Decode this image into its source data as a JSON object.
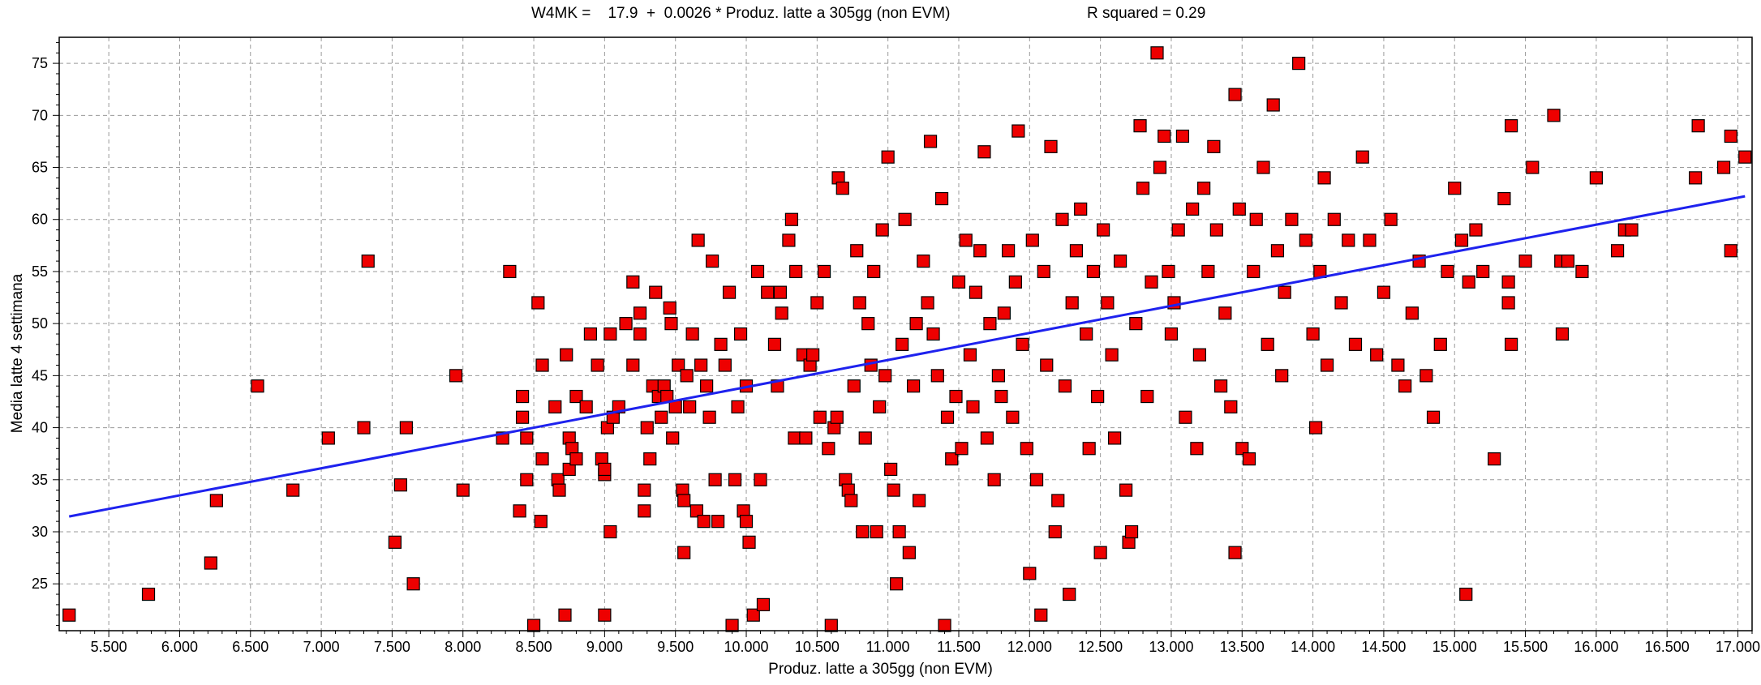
{
  "header": {
    "equation": "W4MK =    17.9  +  0.0026 * Produz. latte a 305gg (non EVM)",
    "r_squared": "R squared = 0.29"
  },
  "colors": {
    "points": "#ee0000",
    "point_border": "#000000",
    "line": "#1e22ee",
    "grid": "#9a9a9a"
  },
  "chart_data": {
    "type": "scatter",
    "title": "W4MK =    17.9  +  0.0026 * Produz. latte a 305gg (non EVM)",
    "subtitle": "R squared = 0.29",
    "xlabel": "Produz. latte a 305gg (non EVM)",
    "ylabel": "Media latte 4 settimana",
    "xlim": [
      5150,
      17100
    ],
    "ylim": [
      20.5,
      77.5
    ],
    "grid": true,
    "x_ticks": [
      5500,
      6000,
      6500,
      7000,
      7500,
      8000,
      8500,
      9000,
      9500,
      10000,
      10500,
      11000,
      11500,
      12000,
      12500,
      13000,
      13500,
      14000,
      14500,
      15000,
      15500,
      16000,
      16500,
      17000
    ],
    "x_tick_labels": [
      "5.500",
      "6.000",
      "6.500",
      "7.000",
      "7.500",
      "8.000",
      "8.500",
      "9.000",
      "9.500",
      "10.000",
      "10.500",
      "11.000",
      "11.500",
      "12.000",
      "12.500",
      "13.000",
      "13.500",
      "14.000",
      "14.500",
      "15.000",
      "15.500",
      "16.000",
      "16.500",
      "17.000"
    ],
    "y_ticks": [
      25,
      30,
      35,
      40,
      45,
      50,
      55,
      60,
      65,
      70,
      75
    ],
    "y_tick_labels": [
      "25",
      "30",
      "35",
      "40",
      "45",
      "50",
      "55",
      "60",
      "65",
      "70",
      "75"
    ],
    "regression": {
      "intercept": 17.9,
      "slope": 0.0026,
      "x_range": [
        5220,
        17050
      ]
    },
    "points": [
      [
        5220,
        22
      ],
      [
        5780,
        24
      ],
      [
        6220,
        27
      ],
      [
        6260,
        33
      ],
      [
        6550,
        44
      ],
      [
        6800,
        34
      ],
      [
        7050,
        39
      ],
      [
        7300,
        40
      ],
      [
        7330,
        56
      ],
      [
        7520,
        29
      ],
      [
        7560,
        34.5
      ],
      [
        7600,
        40
      ],
      [
        7650,
        25
      ],
      [
        7950,
        45
      ],
      [
        8000,
        34
      ],
      [
        8280,
        39
      ],
      [
        8330,
        55
      ],
      [
        8400,
        32
      ],
      [
        8420,
        43
      ],
      [
        8420,
        41
      ],
      [
        8450,
        35
      ],
      [
        8450,
        39
      ],
      [
        8500,
        21
      ],
      [
        8530,
        52
      ],
      [
        8560,
        46
      ],
      [
        8560,
        37
      ],
      [
        8550,
        31
      ],
      [
        8650,
        42
      ],
      [
        8670,
        35
      ],
      [
        8680,
        34
      ],
      [
        8720,
        22
      ],
      [
        8730,
        47
      ],
      [
        8750,
        39
      ],
      [
        8750,
        36
      ],
      [
        8770,
        38
      ],
      [
        8800,
        43
      ],
      [
        8800,
        37
      ],
      [
        8870,
        42
      ],
      [
        8900,
        49
      ],
      [
        8950,
        46
      ],
      [
        8980,
        37
      ],
      [
        9000,
        35.5
      ],
      [
        9000,
        36
      ],
      [
        9000,
        22
      ],
      [
        9020,
        40
      ],
      [
        9040,
        30
      ],
      [
        9040,
        49
      ],
      [
        9060,
        41
      ],
      [
        9100,
        42
      ],
      [
        9150,
        50
      ],
      [
        9200,
        54
      ],
      [
        9200,
        46
      ],
      [
        9250,
        51
      ],
      [
        9250,
        49
      ],
      [
        9280,
        34
      ],
      [
        9280,
        32
      ],
      [
        9300,
        40
      ],
      [
        9320,
        37
      ],
      [
        9340,
        44
      ],
      [
        9360,
        53
      ],
      [
        9380,
        43
      ],
      [
        9400,
        41
      ],
      [
        9420,
        44
      ],
      [
        9440,
        43
      ],
      [
        9460,
        51.5
      ],
      [
        9470,
        50
      ],
      [
        9480,
        39
      ],
      [
        9500,
        42
      ],
      [
        9520,
        46
      ],
      [
        9550,
        34
      ],
      [
        9560,
        33
      ],
      [
        9560,
        28
      ],
      [
        9580,
        45
      ],
      [
        9600,
        42
      ],
      [
        9620,
        49
      ],
      [
        9650,
        32
      ],
      [
        9660,
        58
      ],
      [
        9680,
        46
      ],
      [
        9700,
        31
      ],
      [
        9720,
        44
      ],
      [
        9740,
        41
      ],
      [
        9760,
        56
      ],
      [
        9780,
        35
      ],
      [
        9800,
        31
      ],
      [
        9820,
        48
      ],
      [
        9850,
        46
      ],
      [
        9880,
        53
      ],
      [
        9900,
        21
      ],
      [
        9920,
        35
      ],
      [
        9940,
        42
      ],
      [
        9960,
        49
      ],
      [
        9980,
        32
      ],
      [
        10000,
        31
      ],
      [
        10000,
        44
      ],
      [
        10020,
        29
      ],
      [
        10050,
        22
      ],
      [
        10080,
        55
      ],
      [
        10100,
        35
      ],
      [
        10120,
        23
      ],
      [
        10150,
        53
      ],
      [
        10200,
        48
      ],
      [
        10220,
        44
      ],
      [
        10240,
        53
      ],
      [
        10250,
        51
      ],
      [
        10300,
        58
      ],
      [
        10320,
        60
      ],
      [
        10340,
        39
      ],
      [
        10350,
        55
      ],
      [
        10400,
        47
      ],
      [
        10420,
        39
      ],
      [
        10450,
        46
      ],
      [
        10470,
        47
      ],
      [
        10500,
        52
      ],
      [
        10520,
        41
      ],
      [
        10550,
        55
      ],
      [
        10580,
        38
      ],
      [
        10600,
        21
      ],
      [
        10620,
        40
      ],
      [
        10640,
        41
      ],
      [
        10650,
        64
      ],
      [
        10680,
        63
      ],
      [
        10700,
        35
      ],
      [
        10720,
        34
      ],
      [
        10740,
        33
      ],
      [
        10760,
        44
      ],
      [
        10780,
        57
      ],
      [
        10800,
        52
      ],
      [
        10820,
        30
      ],
      [
        10840,
        39
      ],
      [
        10860,
        50
      ],
      [
        10880,
        46
      ],
      [
        10900,
        55
      ],
      [
        10920,
        30
      ],
      [
        10940,
        42
      ],
      [
        10960,
        59
      ],
      [
        10980,
        45
      ],
      [
        11000,
        66
      ],
      [
        11020,
        36
      ],
      [
        11040,
        34
      ],
      [
        11060,
        25
      ],
      [
        11080,
        30
      ],
      [
        11100,
        48
      ],
      [
        11120,
        60
      ],
      [
        11150,
        28
      ],
      [
        11180,
        44
      ],
      [
        11200,
        50
      ],
      [
        11220,
        33
      ],
      [
        11250,
        56
      ],
      [
        11280,
        52
      ],
      [
        11300,
        67.5
      ],
      [
        11320,
        49
      ],
      [
        11350,
        45
      ],
      [
        11380,
        62
      ],
      [
        11400,
        21
      ],
      [
        11420,
        41
      ],
      [
        11450,
        37
      ],
      [
        11480,
        43
      ],
      [
        11500,
        54
      ],
      [
        11520,
        38
      ],
      [
        11550,
        58
      ],
      [
        11580,
        47
      ],
      [
        11600,
        42
      ],
      [
        11620,
        53
      ],
      [
        11650,
        57
      ],
      [
        11680,
        66.5
      ],
      [
        11700,
        39
      ],
      [
        11720,
        50
      ],
      [
        11750,
        35
      ],
      [
        11780,
        45
      ],
      [
        11800,
        43
      ],
      [
        11820,
        51
      ],
      [
        11850,
        57
      ],
      [
        11880,
        41
      ],
      [
        11900,
        54
      ],
      [
        11920,
        68.5
      ],
      [
        11950,
        48
      ],
      [
        11980,
        38
      ],
      [
        12000,
        26
      ],
      [
        12020,
        58
      ],
      [
        12050,
        35
      ],
      [
        12080,
        22
      ],
      [
        12100,
        55
      ],
      [
        12120,
        46
      ],
      [
        12150,
        67
      ],
      [
        12180,
        30
      ],
      [
        12200,
        33
      ],
      [
        12230,
        60
      ],
      [
        12250,
        44
      ],
      [
        12280,
        24
      ],
      [
        12300,
        52
      ],
      [
        12330,
        57
      ],
      [
        12360,
        61
      ],
      [
        12400,
        49
      ],
      [
        12420,
        38
      ],
      [
        12450,
        55
      ],
      [
        12480,
        43
      ],
      [
        12500,
        28
      ],
      [
        12520,
        59
      ],
      [
        12550,
        52
      ],
      [
        12580,
        47
      ],
      [
        12600,
        39
      ],
      [
        12640,
        56
      ],
      [
        12680,
        34
      ],
      [
        12700,
        29
      ],
      [
        12720,
        30
      ],
      [
        12750,
        50
      ],
      [
        12780,
        69
      ],
      [
        12800,
        63
      ],
      [
        12830,
        43
      ],
      [
        12860,
        54
      ],
      [
        12900,
        76
      ],
      [
        12920,
        65
      ],
      [
        12950,
        68
      ],
      [
        12980,
        55
      ],
      [
        13000,
        49
      ],
      [
        13020,
        52
      ],
      [
        13050,
        59
      ],
      [
        13080,
        68
      ],
      [
        13100,
        41
      ],
      [
        13150,
        61
      ],
      [
        13180,
        38
      ],
      [
        13200,
        47
      ],
      [
        13230,
        63
      ],
      [
        13260,
        55
      ],
      [
        13300,
        67
      ],
      [
        13320,
        59
      ],
      [
        13350,
        44
      ],
      [
        13380,
        51
      ],
      [
        13420,
        42
      ],
      [
        13450,
        72
      ],
      [
        13450,
        28
      ],
      [
        13480,
        61
      ],
      [
        13500,
        38
      ],
      [
        13550,
        37
      ],
      [
        13580,
        55
      ],
      [
        13600,
        60
      ],
      [
        13650,
        65
      ],
      [
        13680,
        48
      ],
      [
        13720,
        71
      ],
      [
        13750,
        57
      ],
      [
        13780,
        45
      ],
      [
        13800,
        53
      ],
      [
        13850,
        60
      ],
      [
        13900,
        75
      ],
      [
        13950,
        58
      ],
      [
        14000,
        49
      ],
      [
        14020,
        40
      ],
      [
        14050,
        55
      ],
      [
        14080,
        64
      ],
      [
        14100,
        46
      ],
      [
        14150,
        60
      ],
      [
        14200,
        52
      ],
      [
        14250,
        58
      ],
      [
        14300,
        48
      ],
      [
        14350,
        66
      ],
      [
        14400,
        58
      ],
      [
        14450,
        47
      ],
      [
        14500,
        53
      ],
      [
        14550,
        60
      ],
      [
        14600,
        46
      ],
      [
        14650,
        44
      ],
      [
        14700,
        51
      ],
      [
        14750,
        56
      ],
      [
        14800,
        45
      ],
      [
        14850,
        41
      ],
      [
        14900,
        48
      ],
      [
        14950,
        55
      ],
      [
        15000,
        63
      ],
      [
        15050,
        58
      ],
      [
        15080,
        24
      ],
      [
        15100,
        54
      ],
      [
        15150,
        59
      ],
      [
        15200,
        55
      ],
      [
        15280,
        37
      ],
      [
        15350,
        62
      ],
      [
        15380,
        52
      ],
      [
        15380,
        54
      ],
      [
        15400,
        48
      ],
      [
        15400,
        69
      ],
      [
        15500,
        56
      ],
      [
        15550,
        65
      ],
      [
        15700,
        70
      ],
      [
        15750,
        56
      ],
      [
        15760,
        49
      ],
      [
        15800,
        56
      ],
      [
        15900,
        55
      ],
      [
        16000,
        64
      ],
      [
        16150,
        57
      ],
      [
        16200,
        59
      ],
      [
        16250,
        59
      ],
      [
        16700,
        64
      ],
      [
        16720,
        69
      ],
      [
        16900,
        65
      ],
      [
        16950,
        57
      ],
      [
        16950,
        68
      ],
      [
        17050,
        66
      ]
    ]
  }
}
